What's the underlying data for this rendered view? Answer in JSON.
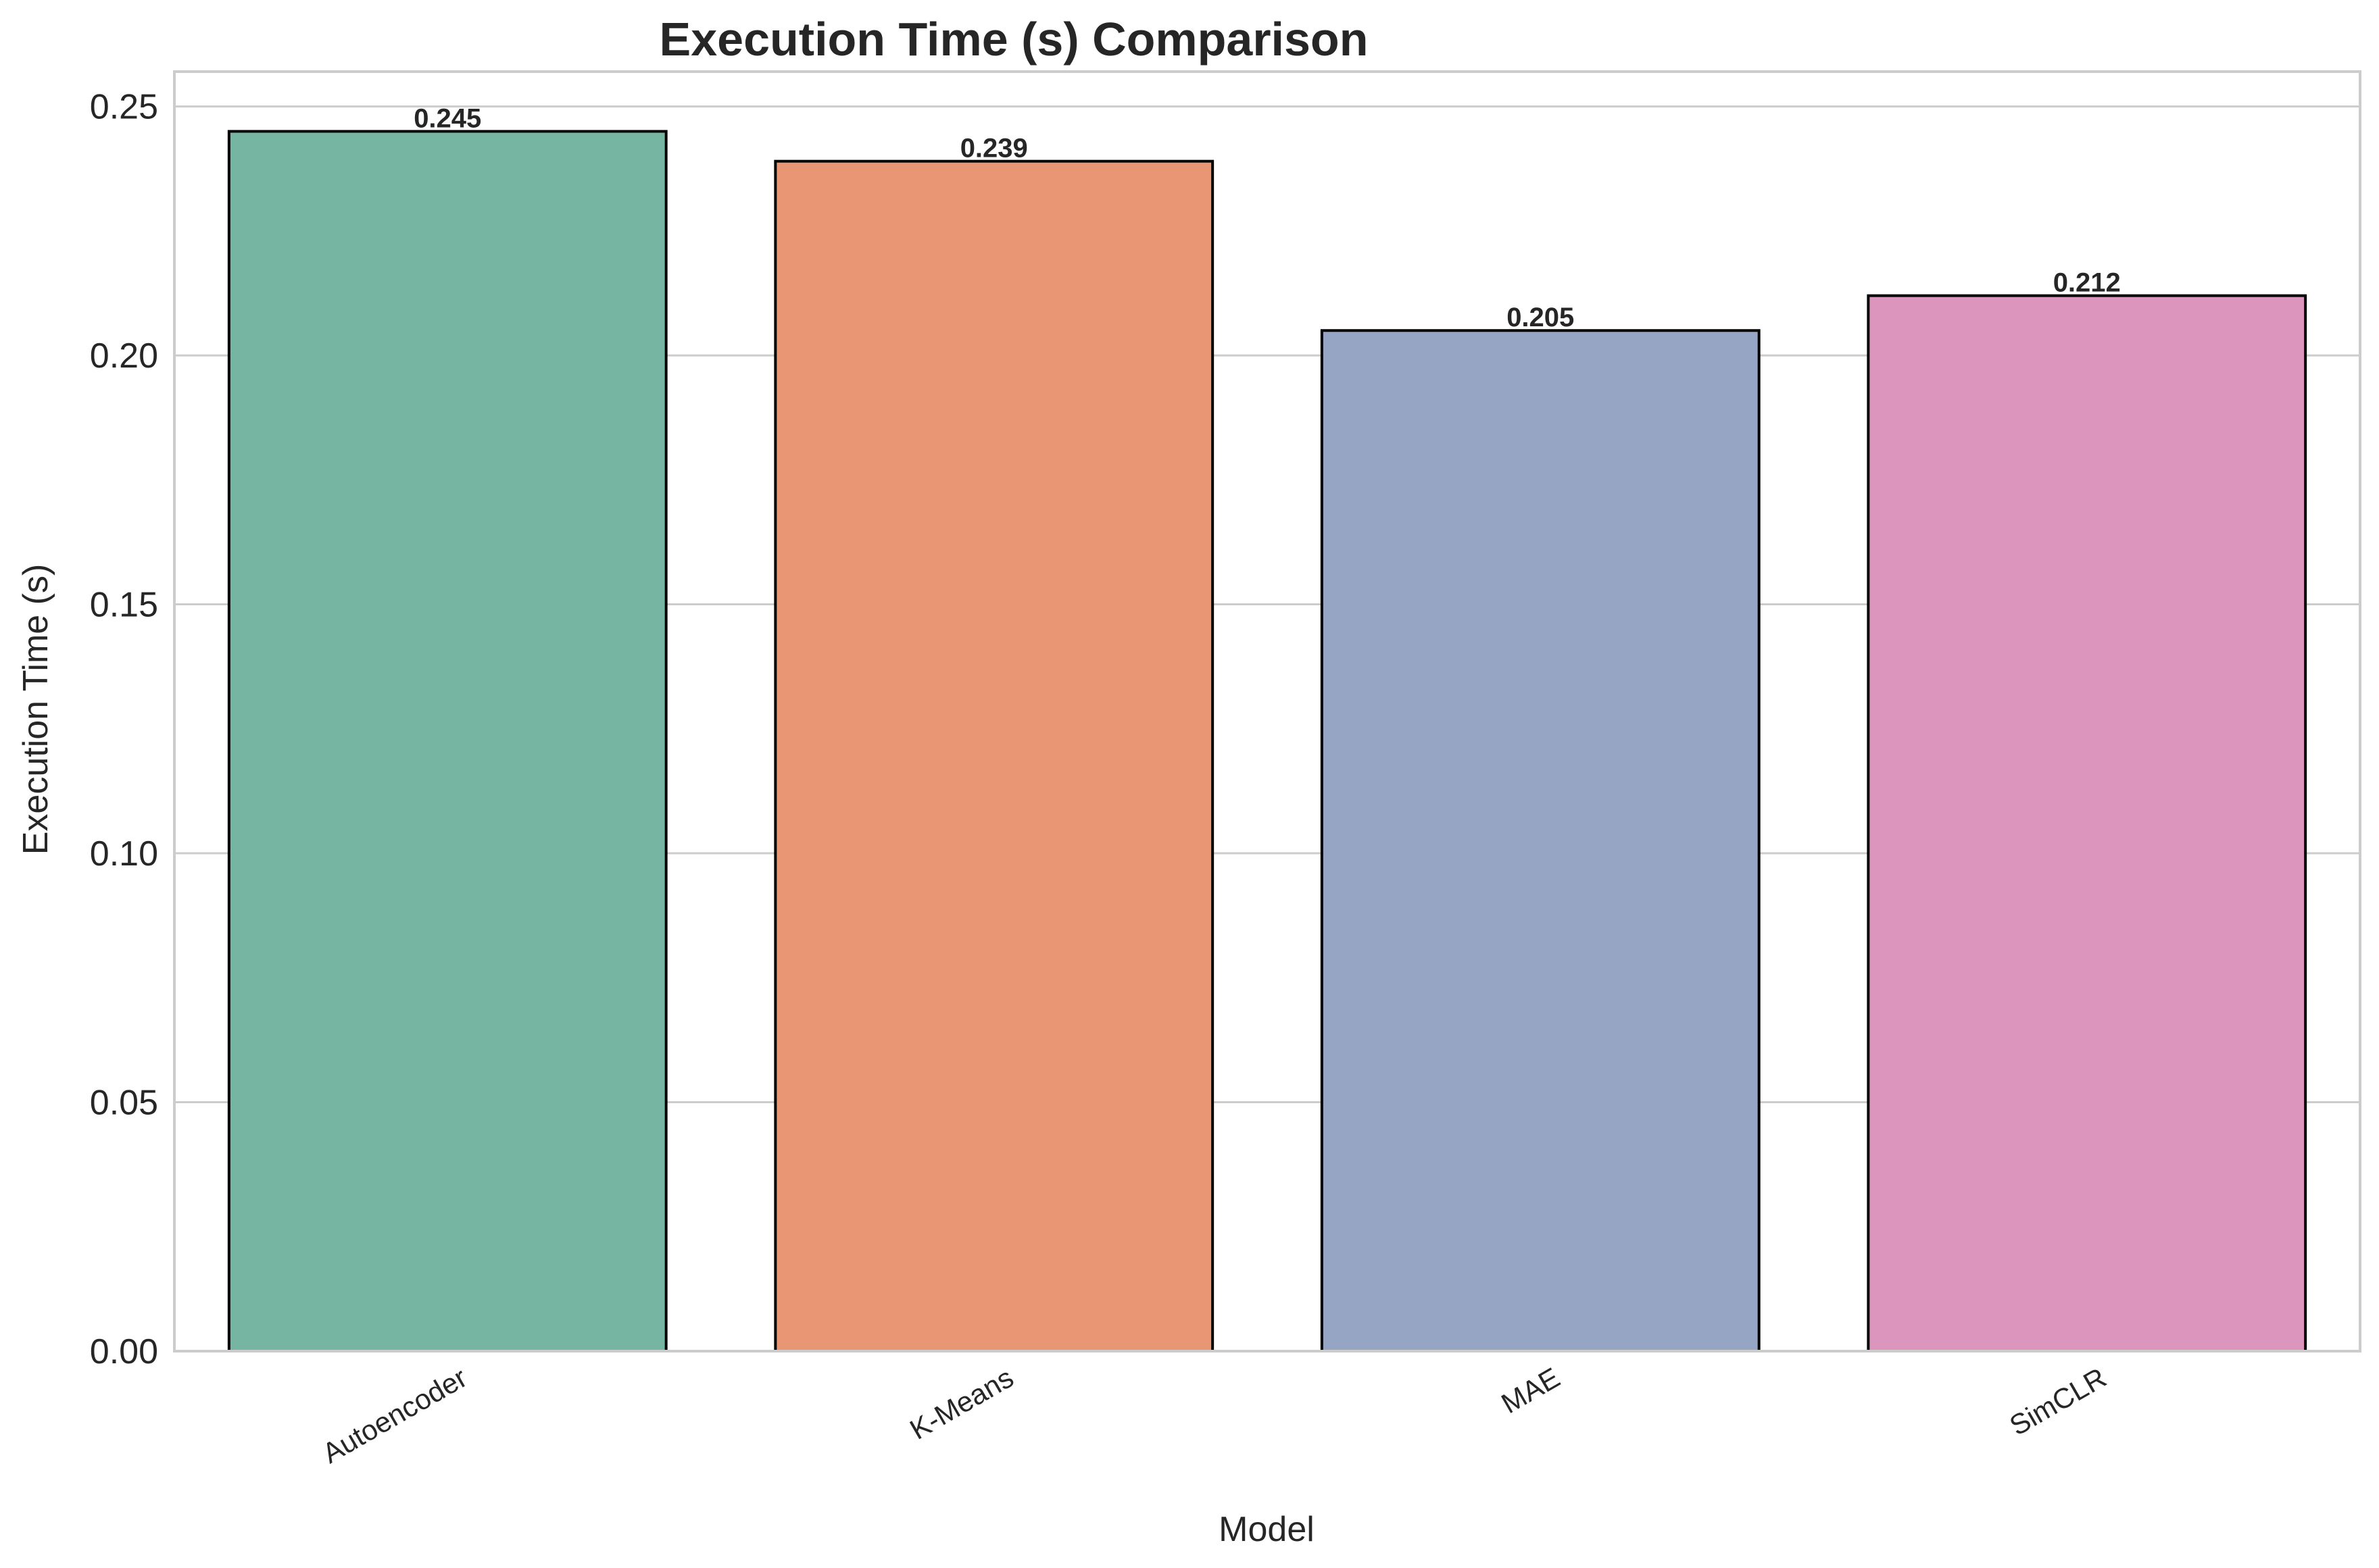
{
  "chart_data": {
    "type": "bar",
    "title": "Execution Time (s) Comparison",
    "xlabel": "Model",
    "ylabel": "Execution Time (s)",
    "categories": [
      "Autoencoder",
      "K-Means",
      "MAE",
      "SimCLR"
    ],
    "values": [
      0.245,
      0.239,
      0.205,
      0.212
    ],
    "value_labels": [
      "0.245",
      "0.239",
      "0.205",
      "0.212"
    ],
    "colors": [
      "#75b5a1",
      "#e99675",
      "#95a5c3",
      "#dc95bd"
    ],
    "ylim": [
      0,
      0.257
    ],
    "yticks": [
      0.0,
      0.05,
      0.1,
      0.15,
      0.2,
      0.25
    ],
    "ytick_labels": [
      "0.00",
      "0.05",
      "0.10",
      "0.15",
      "0.20",
      "0.25"
    ],
    "grid": "horizontal",
    "legend": "none"
  }
}
